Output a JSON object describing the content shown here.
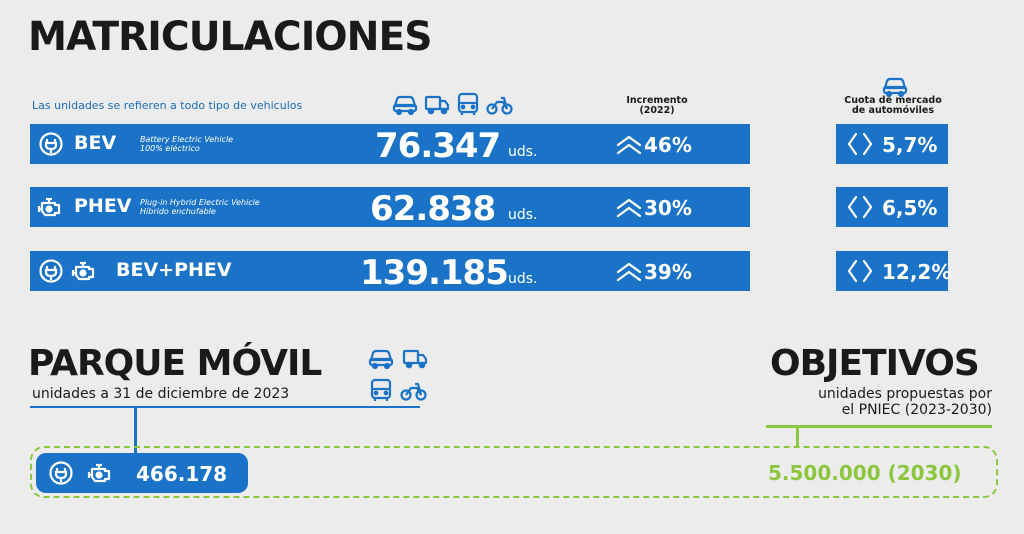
{
  "header": {
    "title": "MATRICULACIONES",
    "note": "Las unidades se refieren a todo tipo de vehiculos",
    "increment_label_1": "Incremento",
    "increment_label_2": "(2022)",
    "share_label_1": "Cuota de mercado",
    "share_label_2": "de automóviles"
  },
  "rows": [
    {
      "label": "BEV",
      "desc_1": "Battery Electric Vehicle",
      "desc_2": "100% eléctrico",
      "units": "76.347",
      "units_suffix": "uds.",
      "increment": "46%",
      "share": "5,7%"
    },
    {
      "label": "PHEV",
      "desc_1": "Plug-in Hybrid Electric Vehicle",
      "desc_2": "Híbrido enchufable",
      "units": "62.838",
      "units_suffix": "uds.",
      "increment": "30%",
      "share": "6,5%"
    },
    {
      "label": "BEV+PHEV",
      "desc_1": "",
      "desc_2": "",
      "units": "139.185",
      "units_suffix": "uds.",
      "increment": "39%",
      "share": "12,2%"
    }
  ],
  "parque": {
    "title": "PARQUE MÓVIL",
    "subtitle": "unidades a 31 de diciembre de 2023",
    "value": "466.178"
  },
  "objetivos": {
    "title": "OBJETIVOS",
    "subtitle_1": "unidades propuestas por",
    "subtitle_2": "el PNIEC (2023-2030)",
    "value": "5.500.000 (2030)"
  },
  "colors": {
    "accent": "#1a73c6",
    "green": "#8cc63f",
    "background": "#ececec"
  },
  "icons": [
    "car-icon",
    "truck-icon",
    "bus-icon",
    "motorcycle-icon",
    "plug-icon",
    "engine-icon",
    "double-chevron-up-icon",
    "angle-brackets-icon"
  ]
}
